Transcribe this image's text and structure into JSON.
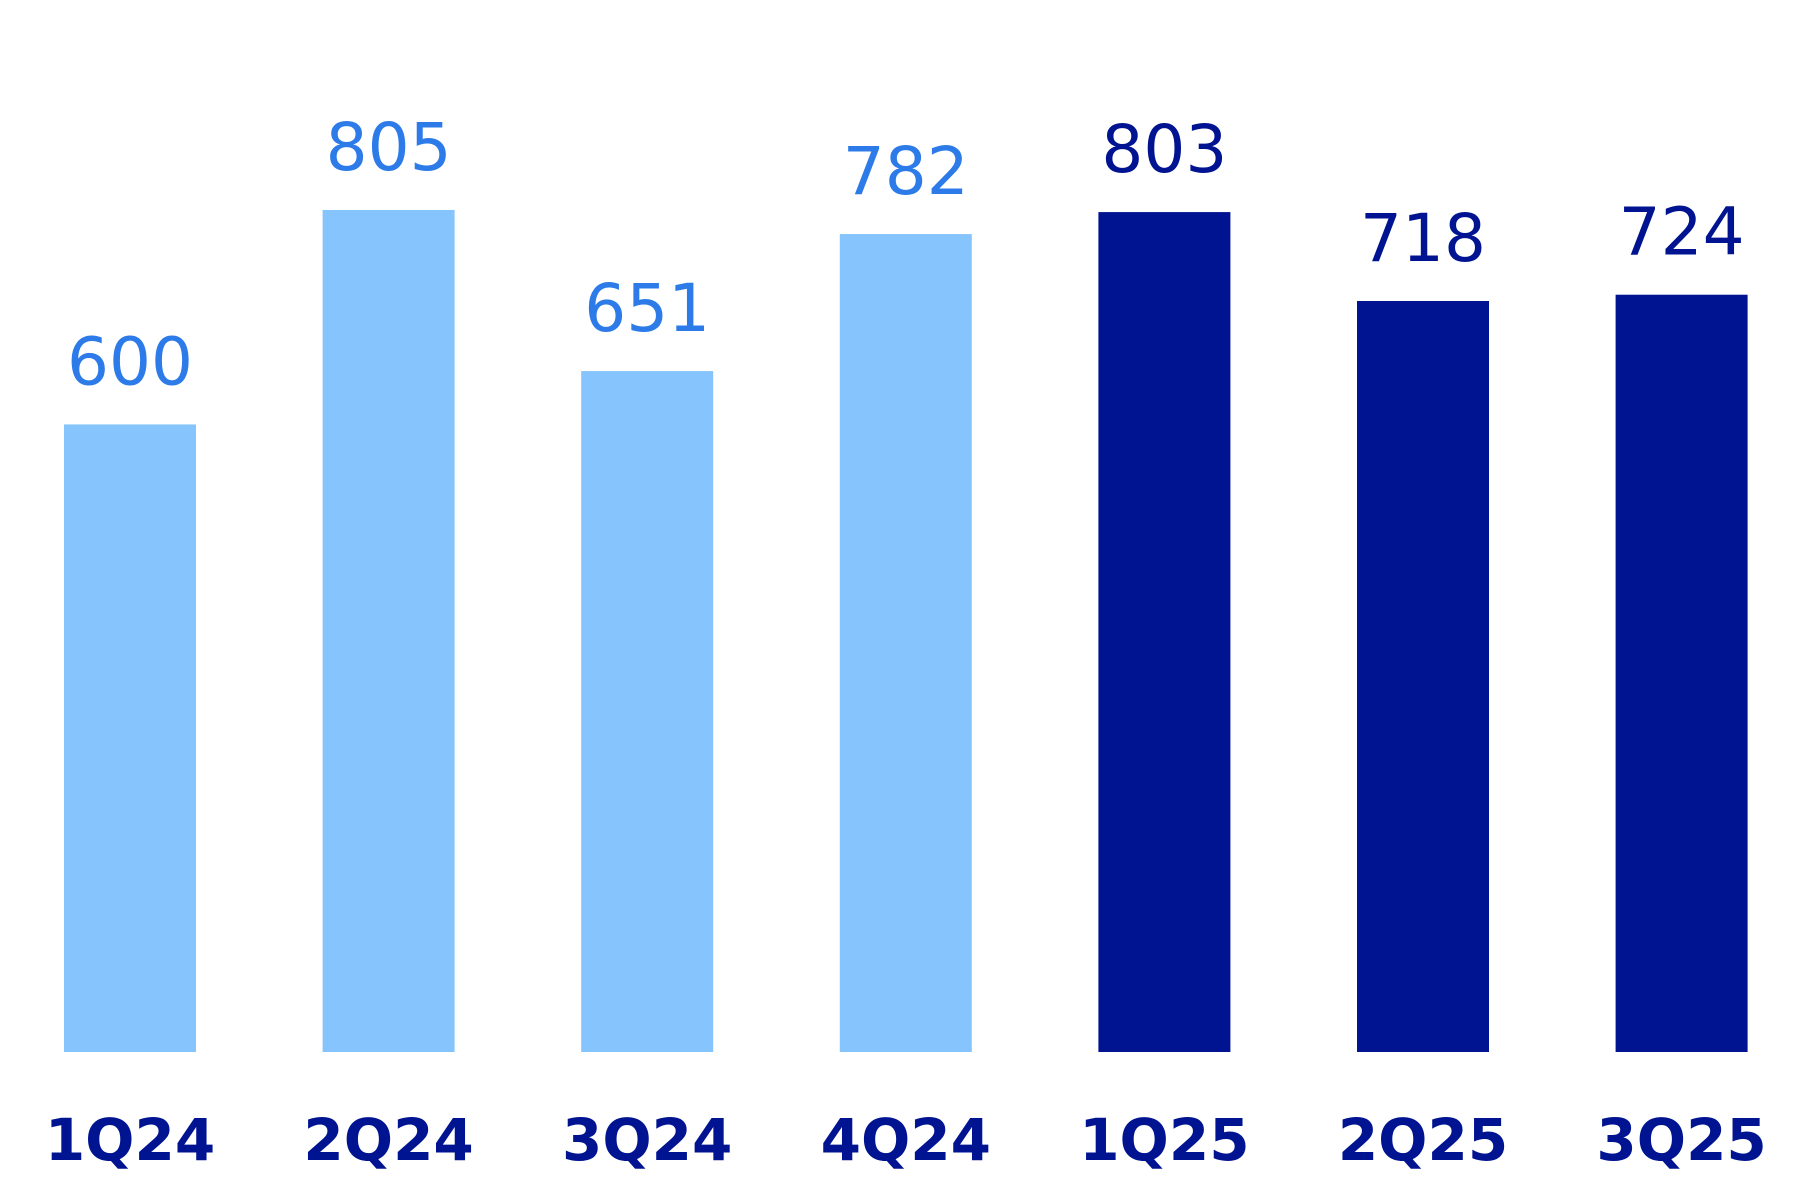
{
  "chart_data": {
    "type": "bar",
    "categories": [
      "1Q24",
      "2Q24",
      "3Q24",
      "4Q24",
      "1Q25",
      "2Q25",
      "3Q25"
    ],
    "values": [
      600,
      805,
      651,
      782,
      803,
      718,
      724
    ],
    "ylim": [
      0,
      805
    ],
    "grid": false,
    "title": "",
    "xlabel": "",
    "ylabel": "",
    "colors": {
      "bars_2024": "#85c4fc",
      "bars_2025": "#001391",
      "labels_2024": "#2d7be8",
      "labels_2025": "#001391",
      "tick_labels": "#001391"
    },
    "series_color_groups": [
      "2024",
      "2024",
      "2024",
      "2024",
      "2025",
      "2025",
      "2025"
    ]
  }
}
